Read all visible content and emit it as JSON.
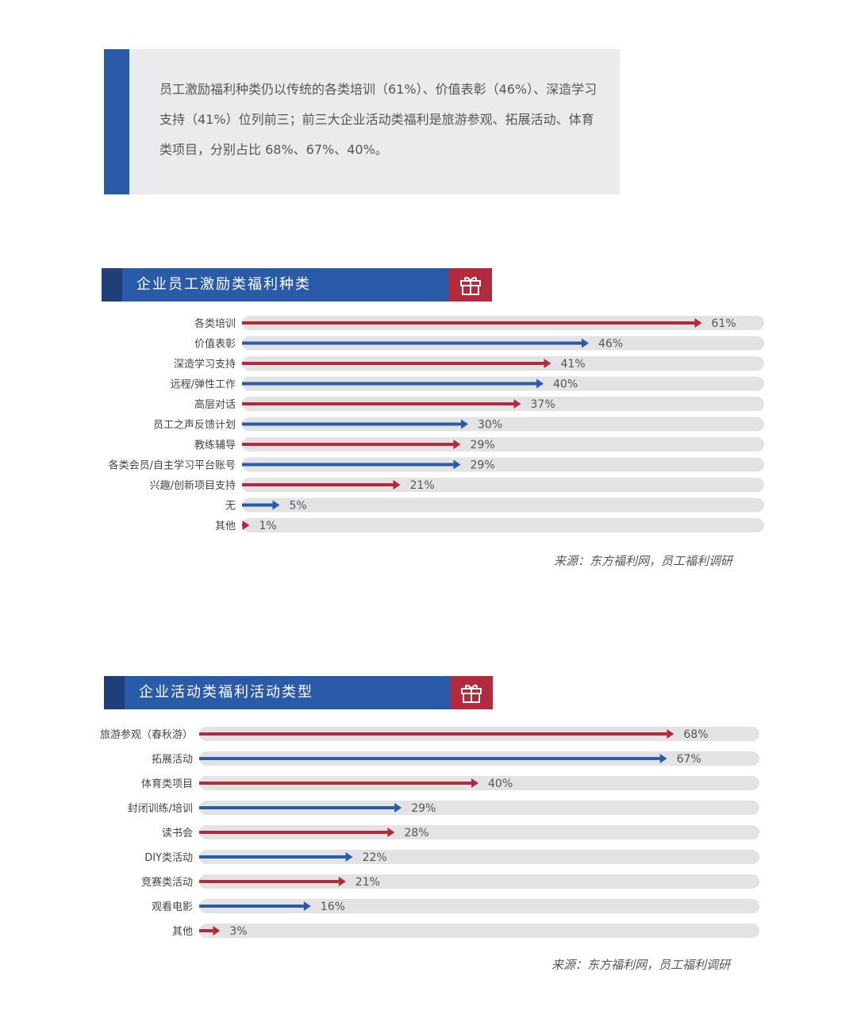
{
  "summary": {
    "text": "员工激励福利种类仍以传统的各类培训（61%）、价值表彰（46%）、深造学习支持（41%）位列前三；前三大企业活动类福利是旅游参观、拓展活动、体育类项目，分别占比 68%、67%、40%。"
  },
  "colors": {
    "blue": "#2a5ba8",
    "red": "#b22a3c",
    "track": "#e3e3e5",
    "label": "#444444"
  },
  "icons": {
    "gift": "gift-icon"
  },
  "chart_data": [
    {
      "type": "bar",
      "title": "企业员工激励类福利种类",
      "categories": [
        "各类培训",
        "价值表彰",
        "深造学习支持",
        "远程/弹性工作",
        "高层对话",
        "员工之声反馈计划",
        "教练辅导",
        "各类会员/自主学习平台账号",
        "兴趣/创新项目支持",
        "无",
        "其他"
      ],
      "values": [
        61,
        46,
        41,
        40,
        37,
        30,
        29,
        29,
        21,
        5,
        1
      ],
      "unit": "%",
      "colors": [
        "red",
        "blue",
        "red",
        "blue",
        "red",
        "blue",
        "red",
        "blue",
        "red",
        "blue",
        "red"
      ],
      "xlim": [
        0,
        100
      ],
      "source": "来源：东方福利网，员工福利调研"
    },
    {
      "type": "bar",
      "title": "企业活动类福利活动类型",
      "categories": [
        "旅游参观（春秋游）",
        "拓展活动",
        "体育类项目",
        "封闭训练/培训",
        "读书会",
        "DIY类活动",
        "竞赛类活动",
        "观看电影",
        "其他"
      ],
      "values": [
        68,
        67,
        40,
        29,
        28,
        22,
        21,
        16,
        3
      ],
      "unit": "%",
      "colors": [
        "red",
        "blue",
        "red",
        "blue",
        "red",
        "blue",
        "red",
        "blue",
        "red"
      ],
      "xlim": [
        0,
        100
      ],
      "source": "来源：东方福利网，员工福利调研"
    }
  ]
}
